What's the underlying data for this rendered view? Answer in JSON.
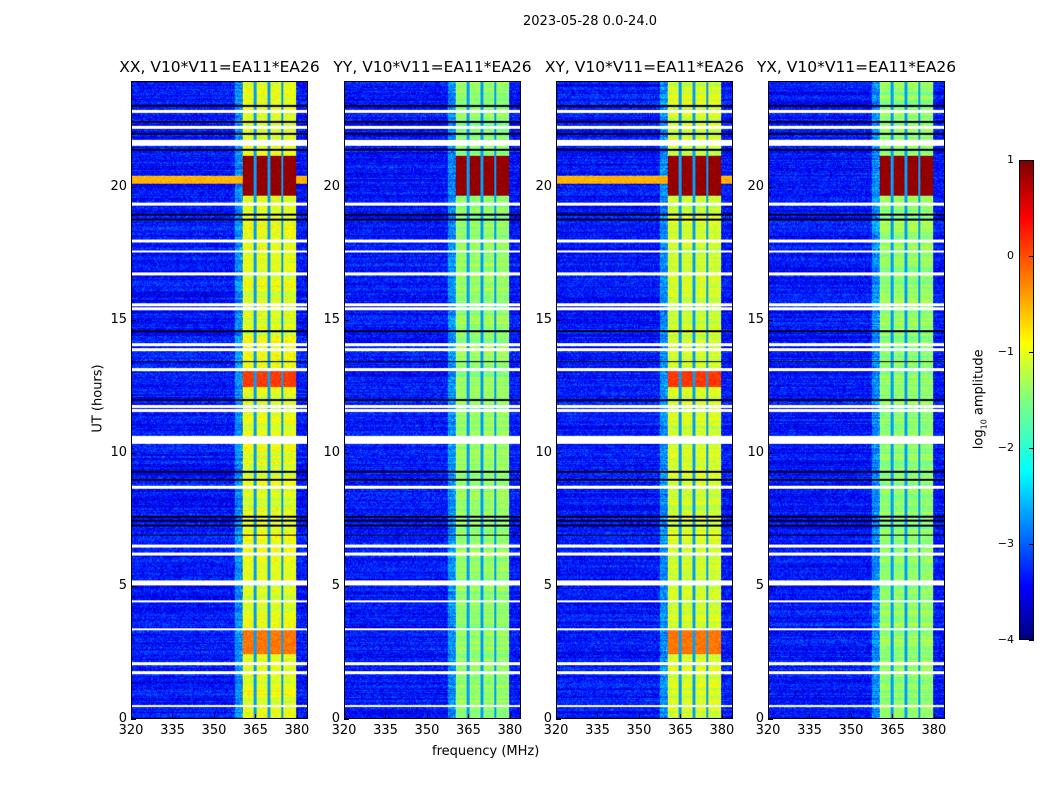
{
  "chart_data": {
    "type": "heatmap",
    "title": "2023-05-28 0.0-24.0",
    "panels": [
      {
        "title": "XX, V10*V11=EA11*EA26",
        "pol": "XX",
        "rfi_level": -1.0
      },
      {
        "title": "YY, V10*V11=EA11*EA26",
        "pol": "YY",
        "rfi_level": -1.4
      },
      {
        "title": "XY, V10*V11=EA11*EA26",
        "pol": "XY",
        "rfi_level": -1.1
      },
      {
        "title": "YX, V10*V11=EA11*EA26",
        "pol": "YX",
        "rfi_level": -1.4
      }
    ],
    "xlabel": "frequency (MHz)",
    "ylabel": "UT (hours)",
    "xlim": [
      320,
      384
    ],
    "ylim": [
      0,
      24
    ],
    "xticks": [
      "320",
      "335",
      "350",
      "365",
      "380"
    ],
    "yticks": [
      "0",
      "5",
      "10",
      "15",
      "20"
    ],
    "colorbar": {
      "label_prefix": "log",
      "label_sub": "10",
      "label_suffix": " amplitude",
      "range": [
        -4,
        1
      ],
      "ticks": [
        "1",
        "0",
        "−1",
        "−2",
        "−3",
        "−4"
      ],
      "colormap": "jet"
    },
    "features": {
      "background_level": -3.3,
      "rfi_band_mhz": [
        360.5,
        380
      ],
      "channel_gaps_mhz": [
        365,
        370,
        375
      ],
      "flagged_hours": [
        0.45,
        1.7,
        2.05,
        3.35,
        4.4,
        5.05,
        5.15,
        6.2,
        6.5,
        8.7,
        10.4,
        10.5,
        10.6,
        11.6,
        11.75,
        13.15,
        13.9,
        14.1,
        15.45,
        15.6,
        16.75,
        17.6,
        18.0,
        19.4,
        21.65,
        21.75,
        22.3,
        22.9
      ],
      "dark_hours": [
        6.9,
        7.25,
        7.45,
        7.6,
        9.0,
        9.3,
        12.0,
        13.45,
        14.6,
        18.8,
        19.0,
        21.45,
        22.05,
        22.5,
        23.1
      ],
      "bright_intervals": [
        {
          "hours": [
            19.7,
            21.2
          ],
          "level": 0.9,
          "pols": [
            "XX",
            "YY",
            "XY",
            "YX"
          ]
        },
        {
          "hours": [
            12.5,
            13.2
          ],
          "level": 0.1,
          "pols": [
            "XX",
            "XY"
          ]
        },
        {
          "hours": [
            2.4,
            3.3
          ],
          "level": -0.2,
          "pols": [
            "XX",
            "XY"
          ]
        },
        {
          "hours": [
            20.15,
            20.45
          ],
          "level": -0.5,
          "pols": [
            "XX",
            "XY"
          ],
          "broadband": true
        }
      ]
    }
  }
}
